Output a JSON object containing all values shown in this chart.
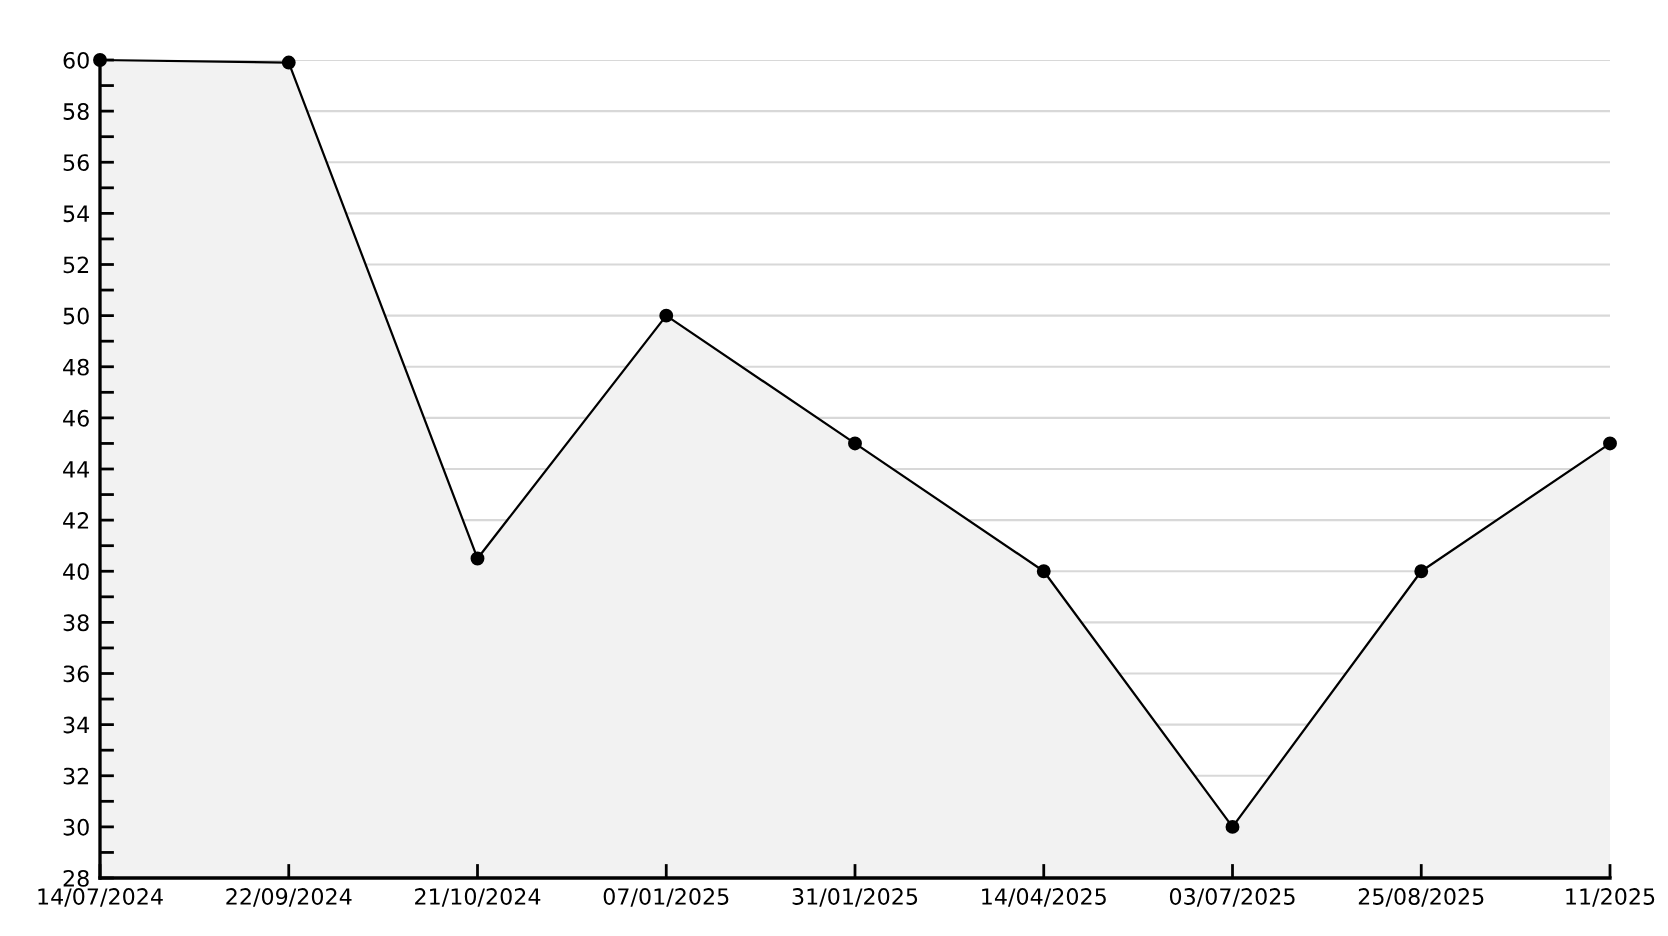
{
  "chart_data": {
    "type": "area",
    "categories": [
      "14/07/2024",
      "22/09/2024",
      "21/10/2024",
      "07/01/2025",
      "31/01/2025",
      "14/04/2025",
      "03/07/2025",
      "25/08/2025",
      "11/2025"
    ],
    "series": [
      {
        "color": "#f2f2f2",
        "values": [
          60,
          59.9,
          40.5,
          50,
          45,
          40,
          30,
          40,
          45
        ]
      }
    ],
    "ylim": [
      28,
      60
    ],
    "yticks": [
      28,
      {
        "value": 29,
        "label": null
      },
      30,
      {
        "value": 31,
        "label": null
      },
      32,
      {
        "value": 33,
        "label": null
      },
      34,
      {
        "value": 35,
        "label": null
      },
      36,
      {
        "value": 37,
        "label": null
      },
      38,
      {
        "value": 39,
        "label": null
      },
      40,
      {
        "value": 41,
        "label": null
      },
      42,
      {
        "value": 43,
        "label": null
      },
      44,
      {
        "value": 45,
        "label": null
      },
      46,
      {
        "value": 47,
        "label": null
      },
      48,
      {
        "value": 49,
        "label": null
      },
      50,
      {
        "value": 51,
        "label": null
      },
      52,
      {
        "value": 53,
        "label": null
      },
      54,
      {
        "value": 55,
        "label": null
      },
      56,
      {
        "value": 57,
        "label": null
      },
      58,
      {
        "value": 59,
        "label": null
      },
      60
    ],
    "grid": "y",
    "marker": "circle",
    "line_style": "solid",
    "legend": false
  }
}
